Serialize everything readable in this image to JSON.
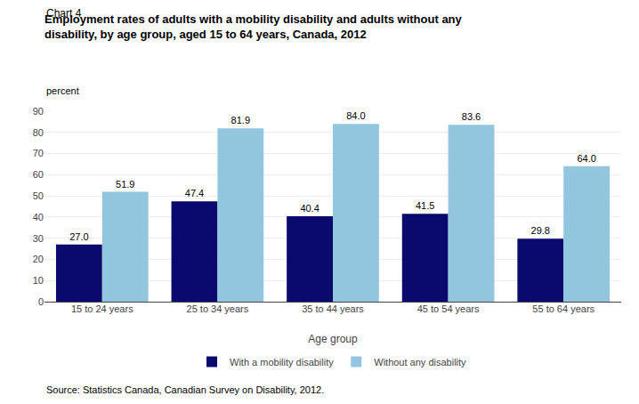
{
  "chart_data": {
    "type": "bar",
    "title": "Employment rates of adults with a mobility disability and adults without any disability, by age group, aged 15 to 64 years, Canada, 2012",
    "xlabel": "Age group",
    "ylabel": "percent",
    "annotations": [
      "Chart 4",
      "Source: Statistics Canada, Canadian Survey on Disability, 2012."
    ],
    "categories": [
      "15 to 24 years",
      "25 to 34 years",
      "35 to 44 years",
      "45 to 54 years",
      "55 to 64 years"
    ],
    "series": [
      {
        "name": "With a mobility disability",
        "color": "#0A0A6E",
        "values": [
          27.0,
          47.4,
          40.4,
          41.5,
          29.8
        ],
        "value_labels": [
          "27.0",
          "47.4",
          "40.4",
          "41.5",
          "29.8"
        ]
      },
      {
        "name": "Without any disability",
        "color": "#92C5DE",
        "values": [
          51.9,
          81.9,
          84.0,
          83.6,
          64.0
        ],
        "value_labels": [
          "51.9",
          "81.9",
          "84.0",
          "83.6",
          "64.0"
        ]
      }
    ],
    "ylim": [
      0,
      90
    ],
    "yticks": [
      0,
      10,
      20,
      30,
      40,
      50,
      60,
      70,
      80,
      90
    ],
    "grid": true,
    "legend": "bottom",
    "data_labels": true
  }
}
